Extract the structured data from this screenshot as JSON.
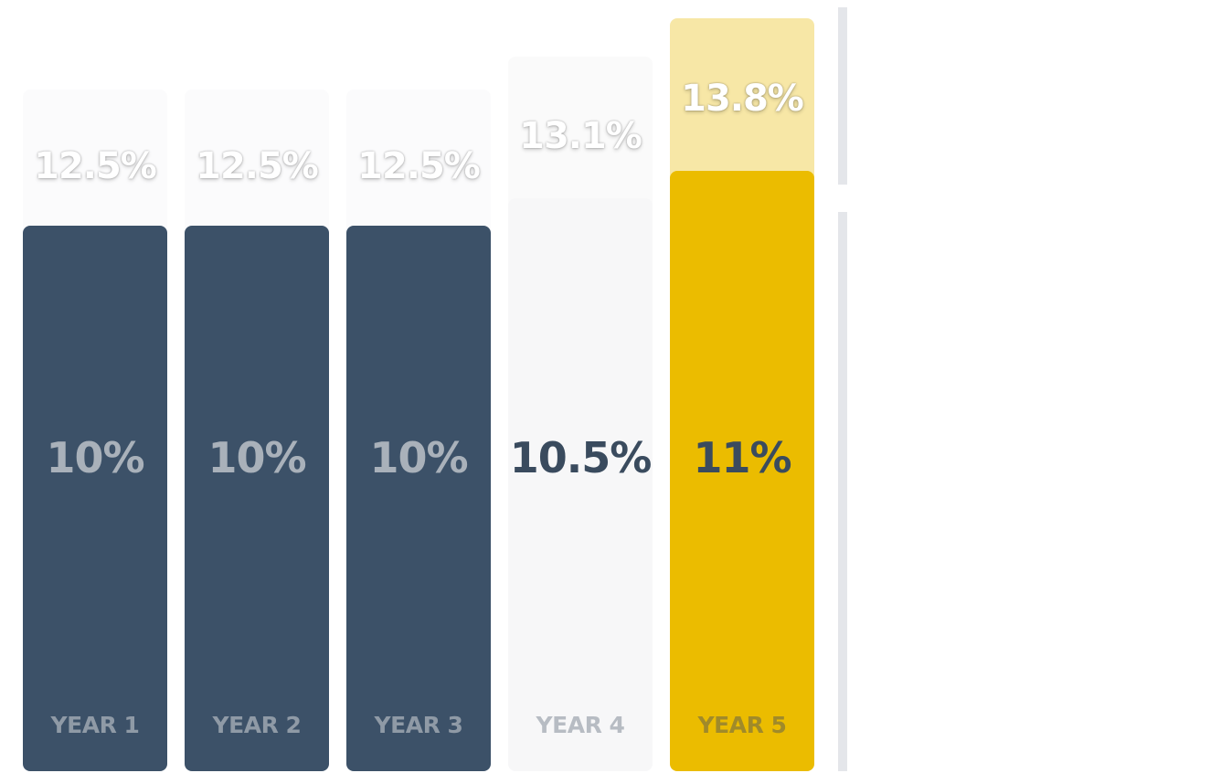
{
  "chart_data": {
    "type": "bar",
    "categories": [
      "YEAR 1",
      "YEAR 2",
      "YEAR 3",
      "YEAR 4",
      "YEAR 5"
    ],
    "series": [
      {
        "values": [
          10,
          10,
          10,
          10.5,
          11
        ]
      },
      {
        "values": [
          12.5,
          12.5,
          12.5,
          13.1,
          13.8
        ]
      }
    ],
    "base_labels": [
      "10%",
      "10%",
      "10%",
      "10.5%",
      "11%"
    ],
    "top_labels": [
      "12.5%",
      "12.5%",
      "12.5%",
      "13.1%",
      "13.8%"
    ],
    "title": "",
    "xlabel": "",
    "ylabel": "",
    "colors": {
      "base": [
        "#3c5168",
        "#3c5168",
        "#3c5168",
        "#f7f7f8",
        "#ebbc00"
      ],
      "top": [
        "#fbfbfc",
        "#fbfbfc",
        "#fbfbfc",
        "#fafafa",
        "#f7e7a6"
      ],
      "base_label": [
        "#a9b1ba",
        "#a9b1ba",
        "#a9b1ba",
        "#3a4b5e",
        "#3a4b5e"
      ],
      "year_label": [
        "#8f9aa6",
        "#8f9aa6",
        "#8f9aa6",
        "#b7bcc3",
        "#a08a2a"
      ]
    }
  }
}
